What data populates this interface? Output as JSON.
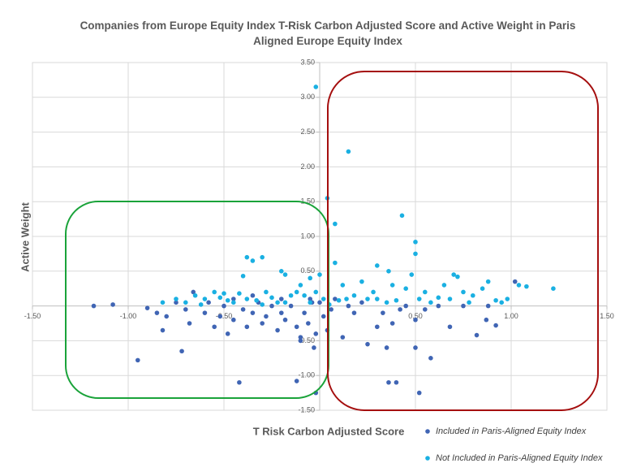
{
  "chart_data": {
    "type": "scatter",
    "title": "Companies from Europe Equity Index T-Risk Carbon Adjusted Score and Active Weight in Paris Aligned Europe Equity Index",
    "xlabel": "T Risk Carbon Adjusted Score",
    "ylabel": "Active Weight",
    "xlim": [
      -1.5,
      1.5
    ],
    "ylim": [
      -1.5,
      3.5
    ],
    "xticks": [
      {
        "value": -1.5,
        "label": "-1.50"
      },
      {
        "value": -1,
        "label": "-1.00"
      },
      {
        "value": -0.5,
        "label": "-0.50"
      },
      {
        "value": 0.5,
        "label": "0.50"
      },
      {
        "value": 1,
        "label": "1.00"
      },
      {
        "value": 1.5,
        "label": "1.50"
      }
    ],
    "yticks": [
      {
        "value": -1.5,
        "label": "-1.50"
      },
      {
        "value": -1,
        "label": "-1.00"
      },
      {
        "value": -0.5,
        "label": "-0.50"
      },
      {
        "value": 0.5,
        "label": "0.50"
      },
      {
        "value": 1,
        "label": "1.00"
      },
      {
        "value": 1.5,
        "label": "1.50"
      },
      {
        "value": 2,
        "label": "2.00"
      },
      {
        "value": 2.5,
        "label": "2.50"
      },
      {
        "value": 3,
        "label": "3.00"
      },
      {
        "value": 3.5,
        "label": "3.50"
      }
    ],
    "grid": true,
    "legend": "bottom-right",
    "series": [
      {
        "name": "Included in Paris-Aligned Equity Index",
        "color": "#4065b4",
        "x": [
          -1.18,
          -1.08,
          -0.95,
          -0.9,
          -0.85,
          -0.82,
          -0.8,
          -0.75,
          -0.72,
          -0.7,
          -0.68,
          -0.66,
          -0.6,
          -0.58,
          -0.55,
          -0.52,
          -0.5,
          -0.48,
          -0.45,
          -0.42,
          -0.4,
          -0.38,
          -0.35,
          -0.32,
          -0.3,
          -0.28,
          -0.25,
          -0.22,
          -0.2,
          -0.18,
          -0.15,
          -0.12,
          -0.1,
          -0.08,
          -0.06,
          -0.04,
          -0.02,
          -0.1,
          -0.03,
          -0.12,
          -0.02,
          0.0,
          0.02,
          0.04,
          0.06,
          0.08,
          0.12,
          0.18,
          0.25,
          0.3,
          0.33,
          0.35,
          0.36,
          0.4,
          0.38,
          0.42,
          0.45,
          0.5,
          0.5,
          0.52,
          0.55,
          0.58,
          0.62,
          0.68,
          0.75,
          0.82,
          0.87,
          0.92,
          1.02,
          0.88,
          -0.45,
          -0.35,
          -0.2,
          -0.05,
          0.15,
          0.22
        ],
        "values": [
          0.0,
          0.02,
          -0.78,
          -0.03,
          -0.1,
          -0.35,
          -0.15,
          0.05,
          -0.65,
          -0.05,
          -0.25,
          0.2,
          -0.1,
          0.05,
          -0.3,
          -0.15,
          0.0,
          -0.4,
          -0.2,
          -1.1,
          -0.05,
          -0.3,
          -0.1,
          0.05,
          -0.25,
          -0.15,
          0.0,
          -0.35,
          -0.1,
          -0.2,
          0.0,
          -0.3,
          -0.5,
          -0.1,
          -0.25,
          0.05,
          -0.4,
          -0.45,
          -0.6,
          -1.08,
          -1.25,
          0.05,
          -0.15,
          -0.35,
          -0.05,
          0.1,
          -0.45,
          -0.1,
          -0.55,
          -0.3,
          -0.1,
          -0.6,
          -1.1,
          -1.1,
          -0.25,
          -0.05,
          0.0,
          -0.6,
          -0.2,
          -1.25,
          -0.05,
          -0.75,
          0.0,
          -0.3,
          0.0,
          -0.42,
          -0.2,
          -0.28,
          0.35,
          0.0,
          0.1,
          0.15,
          0.1,
          0.1,
          0.0,
          0.05
        ]
      },
      {
        "name": "Not Included in Paris-Aligned Equity Index",
        "color": "#1ab0e2",
        "x": [
          -0.02,
          0.15,
          0.04,
          0.08,
          0.43,
          0.5,
          0.5,
          0.08,
          0.3,
          0.36,
          -0.4,
          -0.38,
          -0.35,
          -0.3,
          -0.2,
          -0.18,
          -0.1,
          -0.05,
          0.0,
          0.12,
          0.22,
          0.28,
          0.3,
          0.38,
          0.45,
          0.48,
          0.55,
          0.65,
          0.7,
          0.72,
          0.75,
          0.8,
          0.85,
          0.88,
          0.95,
          0.98,
          1.04,
          1.08,
          1.22,
          -0.82,
          -0.75,
          -0.7,
          -0.65,
          -0.6,
          -0.55,
          -0.52,
          -0.5,
          -0.45,
          -0.42,
          -0.38,
          -0.33,
          -0.28,
          -0.25,
          -0.22,
          -0.15,
          -0.12,
          -0.08,
          -0.05,
          0.02,
          0.05,
          0.1,
          0.18,
          0.25,
          0.35,
          0.4,
          0.52,
          0.58,
          0.62,
          0.68,
          0.78,
          0.92,
          -0.62,
          -0.48,
          -0.3,
          -0.18,
          -0.02,
          0.14
        ],
        "values": [
          3.15,
          2.22,
          1.55,
          1.18,
          1.3,
          0.92,
          0.75,
          0.62,
          0.58,
          0.5,
          0.43,
          0.7,
          0.65,
          0.7,
          0.5,
          0.45,
          0.3,
          0.4,
          0.45,
          0.3,
          0.35,
          0.2,
          0.1,
          0.3,
          0.25,
          0.45,
          0.2,
          0.3,
          0.45,
          0.42,
          0.2,
          0.15,
          0.25,
          0.35,
          0.05,
          0.1,
          0.3,
          0.28,
          0.25,
          0.05,
          0.1,
          0.05,
          0.15,
          0.1,
          0.2,
          0.12,
          0.18,
          0.05,
          0.18,
          0.1,
          0.08,
          0.2,
          0.12,
          0.05,
          0.15,
          0.2,
          0.15,
          0.05,
          0.1,
          0.02,
          0.08,
          0.15,
          0.1,
          0.05,
          0.08,
          0.1,
          0.05,
          0.12,
          0.1,
          0.05,
          0.08,
          0.02,
          0.08,
          0.02,
          0.05,
          0.2,
          0.1
        ]
      }
    ]
  }
}
